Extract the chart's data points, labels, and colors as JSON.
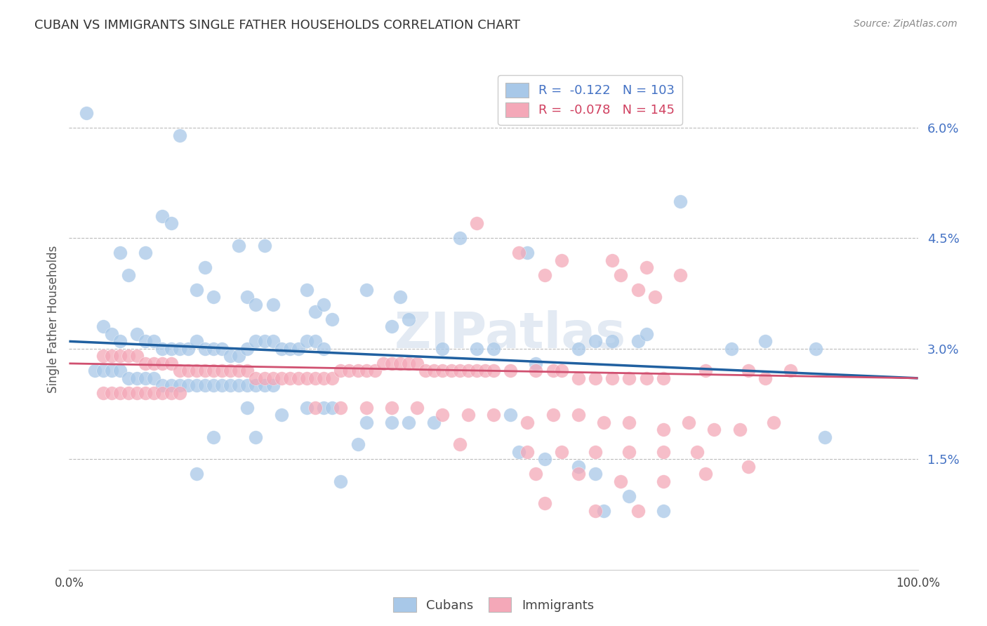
{
  "title": "CUBAN VS IMMIGRANTS SINGLE FATHER HOUSEHOLDS CORRELATION CHART",
  "source": "Source: ZipAtlas.com",
  "ylabel": "Single Father Households",
  "xlim": [
    0.0,
    1.0
  ],
  "ylim": [
    0.0,
    0.068
  ],
  "yticks": [
    0.015,
    0.03,
    0.045,
    0.06
  ],
  "ytick_labels": [
    "1.5%",
    "3.0%",
    "4.5%",
    "6.0%"
  ],
  "xticks": [
    0.0,
    0.1,
    0.2,
    0.3,
    0.4,
    0.5,
    0.6,
    0.7,
    0.8,
    0.9,
    1.0
  ],
  "xtick_labels": [
    "0.0%",
    "",
    "",
    "",
    "",
    "",
    "",
    "",
    "",
    "",
    "100.0%"
  ],
  "blue_R": "-0.122",
  "blue_N": "103",
  "pink_R": "-0.078",
  "pink_N": "145",
  "blue_color": "#a8c8e8",
  "pink_color": "#f4a8b8",
  "blue_line_color": "#2060a0",
  "pink_line_color": "#d05070",
  "watermark": "ZIPatlas",
  "legend_labels": [
    "Cubans",
    "Immigrants"
  ],
  "blue_trend_start_y": 0.031,
  "blue_trend_end_y": 0.026,
  "pink_trend_start_y": 0.028,
  "pink_trend_end_y": 0.026,
  "blue_scatter": [
    [
      0.02,
      0.062
    ],
    [
      0.13,
      0.059
    ],
    [
      0.11,
      0.048
    ],
    [
      0.12,
      0.047
    ],
    [
      0.2,
      0.044
    ],
    [
      0.23,
      0.044
    ],
    [
      0.06,
      0.043
    ],
    [
      0.09,
      0.043
    ],
    [
      0.16,
      0.041
    ],
    [
      0.28,
      0.038
    ],
    [
      0.35,
      0.038
    ],
    [
      0.39,
      0.037
    ],
    [
      0.46,
      0.045
    ],
    [
      0.54,
      0.043
    ],
    [
      0.72,
      0.05
    ],
    [
      0.07,
      0.04
    ],
    [
      0.15,
      0.038
    ],
    [
      0.17,
      0.037
    ],
    [
      0.21,
      0.037
    ],
    [
      0.22,
      0.036
    ],
    [
      0.24,
      0.036
    ],
    [
      0.29,
      0.035
    ],
    [
      0.3,
      0.036
    ],
    [
      0.31,
      0.034
    ],
    [
      0.38,
      0.033
    ],
    [
      0.4,
      0.034
    ],
    [
      0.04,
      0.033
    ],
    [
      0.05,
      0.032
    ],
    [
      0.06,
      0.031
    ],
    [
      0.08,
      0.032
    ],
    [
      0.09,
      0.031
    ],
    [
      0.1,
      0.031
    ],
    [
      0.11,
      0.03
    ],
    [
      0.12,
      0.03
    ],
    [
      0.13,
      0.03
    ],
    [
      0.14,
      0.03
    ],
    [
      0.15,
      0.031
    ],
    [
      0.16,
      0.03
    ],
    [
      0.17,
      0.03
    ],
    [
      0.18,
      0.03
    ],
    [
      0.19,
      0.029
    ],
    [
      0.2,
      0.029
    ],
    [
      0.21,
      0.03
    ],
    [
      0.22,
      0.031
    ],
    [
      0.23,
      0.031
    ],
    [
      0.24,
      0.031
    ],
    [
      0.25,
      0.03
    ],
    [
      0.26,
      0.03
    ],
    [
      0.27,
      0.03
    ],
    [
      0.28,
      0.031
    ],
    [
      0.29,
      0.031
    ],
    [
      0.3,
      0.03
    ],
    [
      0.44,
      0.03
    ],
    [
      0.48,
      0.03
    ],
    [
      0.5,
      0.03
    ],
    [
      0.55,
      0.028
    ],
    [
      0.6,
      0.03
    ],
    [
      0.62,
      0.031
    ],
    [
      0.64,
      0.031
    ],
    [
      0.67,
      0.031
    ],
    [
      0.68,
      0.032
    ],
    [
      0.78,
      0.03
    ],
    [
      0.82,
      0.031
    ],
    [
      0.88,
      0.03
    ],
    [
      0.03,
      0.027
    ],
    [
      0.04,
      0.027
    ],
    [
      0.05,
      0.027
    ],
    [
      0.06,
      0.027
    ],
    [
      0.07,
      0.026
    ],
    [
      0.08,
      0.026
    ],
    [
      0.09,
      0.026
    ],
    [
      0.1,
      0.026
    ],
    [
      0.11,
      0.025
    ],
    [
      0.12,
      0.025
    ],
    [
      0.13,
      0.025
    ],
    [
      0.14,
      0.025
    ],
    [
      0.15,
      0.025
    ],
    [
      0.16,
      0.025
    ],
    [
      0.17,
      0.025
    ],
    [
      0.18,
      0.025
    ],
    [
      0.19,
      0.025
    ],
    [
      0.2,
      0.025
    ],
    [
      0.21,
      0.025
    ],
    [
      0.22,
      0.025
    ],
    [
      0.23,
      0.025
    ],
    [
      0.24,
      0.025
    ],
    [
      0.21,
      0.022
    ],
    [
      0.25,
      0.021
    ],
    [
      0.28,
      0.022
    ],
    [
      0.3,
      0.022
    ],
    [
      0.31,
      0.022
    ],
    [
      0.35,
      0.02
    ],
    [
      0.38,
      0.02
    ],
    [
      0.4,
      0.02
    ],
    [
      0.43,
      0.02
    ],
    [
      0.52,
      0.021
    ],
    [
      0.17,
      0.018
    ],
    [
      0.22,
      0.018
    ],
    [
      0.34,
      0.017
    ],
    [
      0.15,
      0.013
    ],
    [
      0.32,
      0.012
    ],
    [
      0.53,
      0.016
    ],
    [
      0.56,
      0.015
    ],
    [
      0.6,
      0.014
    ],
    [
      0.62,
      0.013
    ],
    [
      0.63,
      0.008
    ],
    [
      0.66,
      0.01
    ],
    [
      0.7,
      0.008
    ],
    [
      0.89,
      0.018
    ]
  ],
  "pink_scatter": [
    [
      0.48,
      0.047
    ],
    [
      0.53,
      0.043
    ],
    [
      0.56,
      0.04
    ],
    [
      0.58,
      0.042
    ],
    [
      0.64,
      0.042
    ],
    [
      0.65,
      0.04
    ],
    [
      0.68,
      0.041
    ],
    [
      0.67,
      0.038
    ],
    [
      0.69,
      0.037
    ],
    [
      0.72,
      0.04
    ],
    [
      0.04,
      0.029
    ],
    [
      0.05,
      0.029
    ],
    [
      0.06,
      0.029
    ],
    [
      0.07,
      0.029
    ],
    [
      0.08,
      0.029
    ],
    [
      0.09,
      0.028
    ],
    [
      0.1,
      0.028
    ],
    [
      0.11,
      0.028
    ],
    [
      0.12,
      0.028
    ],
    [
      0.13,
      0.027
    ],
    [
      0.14,
      0.027
    ],
    [
      0.15,
      0.027
    ],
    [
      0.16,
      0.027
    ],
    [
      0.17,
      0.027
    ],
    [
      0.18,
      0.027
    ],
    [
      0.19,
      0.027
    ],
    [
      0.2,
      0.027
    ],
    [
      0.21,
      0.027
    ],
    [
      0.22,
      0.026
    ],
    [
      0.23,
      0.026
    ],
    [
      0.24,
      0.026
    ],
    [
      0.25,
      0.026
    ],
    [
      0.26,
      0.026
    ],
    [
      0.27,
      0.026
    ],
    [
      0.28,
      0.026
    ],
    [
      0.29,
      0.026
    ],
    [
      0.3,
      0.026
    ],
    [
      0.31,
      0.026
    ],
    [
      0.32,
      0.027
    ],
    [
      0.33,
      0.027
    ],
    [
      0.34,
      0.027
    ],
    [
      0.35,
      0.027
    ],
    [
      0.36,
      0.027
    ],
    [
      0.37,
      0.028
    ],
    [
      0.38,
      0.028
    ],
    [
      0.39,
      0.028
    ],
    [
      0.4,
      0.028
    ],
    [
      0.41,
      0.028
    ],
    [
      0.42,
      0.027
    ],
    [
      0.43,
      0.027
    ],
    [
      0.44,
      0.027
    ],
    [
      0.45,
      0.027
    ],
    [
      0.46,
      0.027
    ],
    [
      0.47,
      0.027
    ],
    [
      0.48,
      0.027
    ],
    [
      0.49,
      0.027
    ],
    [
      0.5,
      0.027
    ],
    [
      0.52,
      0.027
    ],
    [
      0.55,
      0.027
    ],
    [
      0.57,
      0.027
    ],
    [
      0.58,
      0.027
    ],
    [
      0.6,
      0.026
    ],
    [
      0.62,
      0.026
    ],
    [
      0.64,
      0.026
    ],
    [
      0.66,
      0.026
    ],
    [
      0.68,
      0.026
    ],
    [
      0.7,
      0.026
    ],
    [
      0.75,
      0.027
    ],
    [
      0.8,
      0.027
    ],
    [
      0.82,
      0.026
    ],
    [
      0.85,
      0.027
    ],
    [
      0.04,
      0.024
    ],
    [
      0.05,
      0.024
    ],
    [
      0.06,
      0.024
    ],
    [
      0.07,
      0.024
    ],
    [
      0.08,
      0.024
    ],
    [
      0.09,
      0.024
    ],
    [
      0.1,
      0.024
    ],
    [
      0.11,
      0.024
    ],
    [
      0.12,
      0.024
    ],
    [
      0.13,
      0.024
    ],
    [
      0.29,
      0.022
    ],
    [
      0.32,
      0.022
    ],
    [
      0.35,
      0.022
    ],
    [
      0.38,
      0.022
    ],
    [
      0.41,
      0.022
    ],
    [
      0.44,
      0.021
    ],
    [
      0.47,
      0.021
    ],
    [
      0.5,
      0.021
    ],
    [
      0.54,
      0.02
    ],
    [
      0.57,
      0.021
    ],
    [
      0.6,
      0.021
    ],
    [
      0.63,
      0.02
    ],
    [
      0.66,
      0.02
    ],
    [
      0.7,
      0.019
    ],
    [
      0.73,
      0.02
    ],
    [
      0.76,
      0.019
    ],
    [
      0.79,
      0.019
    ],
    [
      0.83,
      0.02
    ],
    [
      0.46,
      0.017
    ],
    [
      0.54,
      0.016
    ],
    [
      0.58,
      0.016
    ],
    [
      0.62,
      0.016
    ],
    [
      0.66,
      0.016
    ],
    [
      0.7,
      0.016
    ],
    [
      0.74,
      0.016
    ],
    [
      0.55,
      0.013
    ],
    [
      0.6,
      0.013
    ],
    [
      0.65,
      0.012
    ],
    [
      0.7,
      0.012
    ],
    [
      0.75,
      0.013
    ],
    [
      0.8,
      0.014
    ],
    [
      0.56,
      0.009
    ],
    [
      0.62,
      0.008
    ],
    [
      0.67,
      0.008
    ]
  ]
}
